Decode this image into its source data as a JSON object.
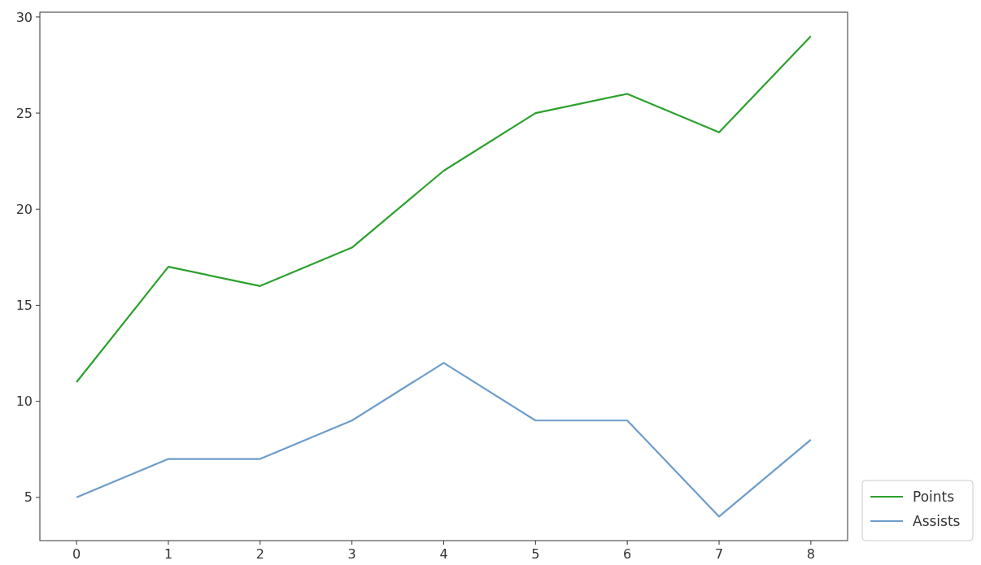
{
  "chart_data": {
    "type": "line",
    "x": [
      0,
      1,
      2,
      3,
      4,
      5,
      6,
      7,
      8
    ],
    "series": [
      {
        "name": "Points",
        "color": "#2ca02c",
        "values": [
          11,
          17,
          16,
          18,
          22,
          25,
          26,
          24,
          29
        ]
      },
      {
        "name": "Assists",
        "color": "#6c9ccc",
        "values": [
          5,
          7,
          7,
          9,
          12,
          9,
          9,
          4,
          8
        ]
      }
    ],
    "xlim": [
      -0.4,
      8.4
    ],
    "xticks": [
      0,
      1,
      2,
      3,
      4,
      5,
      6,
      7,
      8
    ],
    "ylim": [
      2.75,
      30.25
    ],
    "yticks": [
      5,
      10,
      15,
      20,
      25,
      30
    ],
    "grid": false,
    "legend": "bottom right",
    "marker": "none",
    "line_style": "solid"
  }
}
